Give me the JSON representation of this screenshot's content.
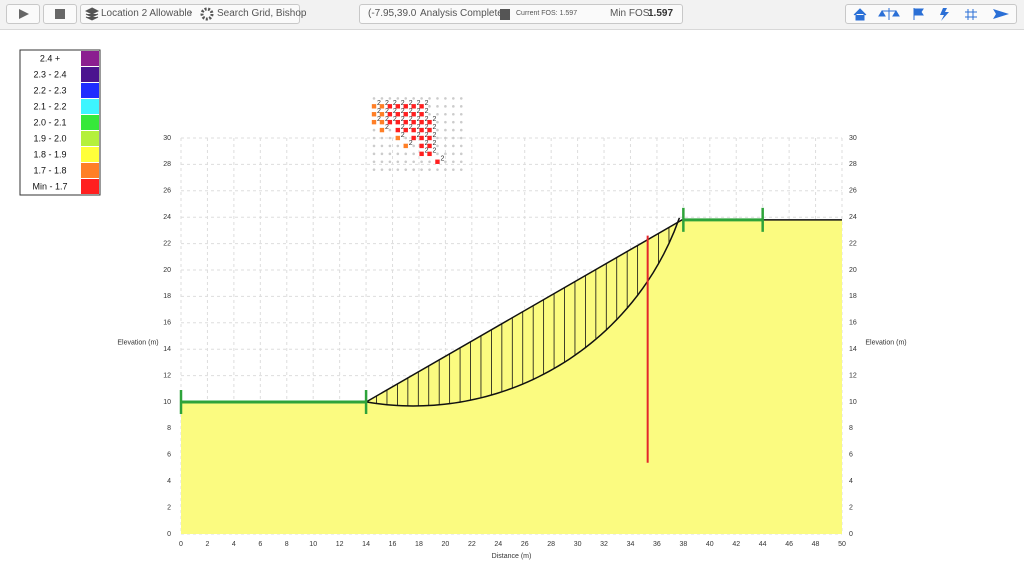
{
  "toolbar": {
    "location": "Location 2 Allowable",
    "method": "Search Grid, Bishop",
    "coords": "(-7.95,39.0",
    "status": "Analysis Complete",
    "current_fos": "Current FOS: 1.597",
    "min_fos_label": "Min FOS:",
    "min_fos": "1.597"
  },
  "chart_data": {
    "type": "slope",
    "xlabel": "Distance (m)",
    "ylabel": "Elevation (m)",
    "y2label": "Elevation (m)",
    "xlim": [
      0,
      50
    ],
    "ylim": [
      0,
      30
    ],
    "xticks": [
      0,
      2,
      4,
      6,
      8,
      10,
      12,
      14,
      16,
      18,
      20,
      22,
      24,
      26,
      28,
      30,
      32,
      34,
      36,
      38,
      40,
      42,
      44,
      46,
      48,
      50
    ],
    "yticks": [
      0,
      2,
      4,
      6,
      8,
      10,
      12,
      14,
      16,
      18,
      20,
      22,
      24,
      26,
      28,
      30
    ],
    "grid": true,
    "legend": [
      {
        "label": "2.4 +",
        "color": "#8b1e90"
      },
      {
        "label": "2.3 - 2.4",
        "color": "#4b138f"
      },
      {
        "label": "2.2 - 2.3",
        "color": "#1f2cff"
      },
      {
        "label": "2.1 - 2.2",
        "color": "#3df5ff"
      },
      {
        "label": "2.0 - 2.1",
        "color": "#36e83a"
      },
      {
        "label": "1.9 - 2.0",
        "color": "#b4f03c"
      },
      {
        "label": "1.8 - 1.9",
        "color": "#ffff3a"
      },
      {
        "label": "1.7 - 1.8",
        "color": "#ff7f27"
      },
      {
        "label": "Min - 1.7",
        "color": "#ff1f1f"
      }
    ],
    "profile": {
      "x": [
        0,
        14,
        37.9,
        50
      ],
      "y": [
        10,
        10,
        23.8,
        23.8
      ],
      "fill": "#fbfb80"
    },
    "markers": {
      "x": [
        0,
        14,
        38,
        44
      ],
      "y": [
        10,
        10,
        23.8,
        23.8
      ],
      "color": "#2ea33a"
    },
    "slip_circle": {
      "cx": 17.6,
      "cy": 31,
      "r": 21.3,
      "entry": 14,
      "exit": 37.7,
      "slices": 30
    },
    "marker_line": {
      "x": 35.3,
      "y": [
        5.4,
        22.6
      ],
      "color": "#e3262b"
    },
    "grid_x": [
      14.6,
      15.2,
      15.8,
      16.4,
      17.0,
      17.6,
      18.2,
      18.8,
      19.4,
      20.0,
      20.6,
      21.2
    ],
    "grid_y": [
      33.0,
      32.4,
      31.8,
      31.2,
      30.6,
      30.0,
      29.4,
      28.8,
      28.2,
      27.6
    ],
    "results": [
      {
        "x": 14.6,
        "y": 32.4,
        "fos": 1.75,
        "label": "2"
      },
      {
        "x": 15.2,
        "y": 32.4,
        "fos": 1.75,
        "label": "2"
      },
      {
        "x": 15.8,
        "y": 32.4,
        "fos": 1.68,
        "label": "2"
      },
      {
        "x": 16.4,
        "y": 32.4,
        "fos": 1.66,
        "label": "2"
      },
      {
        "x": 17.0,
        "y": 32.4,
        "fos": 1.65,
        "label": "2"
      },
      {
        "x": 17.6,
        "y": 32.4,
        "fos": 1.65,
        "label": "2"
      },
      {
        "x": 18.2,
        "y": 32.4,
        "fos": 1.66,
        "label": "2"
      },
      {
        "x": 14.6,
        "y": 31.8,
        "fos": 1.76,
        "label": "2"
      },
      {
        "x": 15.2,
        "y": 31.8,
        "fos": 1.72,
        "label": "2"
      },
      {
        "x": 15.8,
        "y": 31.8,
        "fos": 1.67,
        "label": "2"
      },
      {
        "x": 16.4,
        "y": 31.8,
        "fos": 1.64,
        "label": "2"
      },
      {
        "x": 17.0,
        "y": 31.8,
        "fos": 1.63,
        "label": "2"
      },
      {
        "x": 17.6,
        "y": 31.8,
        "fos": 1.63,
        "label": "2"
      },
      {
        "x": 18.2,
        "y": 31.8,
        "fos": 1.64,
        "label": "2"
      },
      {
        "x": 14.6,
        "y": 31.2,
        "fos": 1.78,
        "label": "2"
      },
      {
        "x": 15.2,
        "y": 31.2,
        "fos": 1.74,
        "label": "2"
      },
      {
        "x": 15.8,
        "y": 31.2,
        "fos": 1.66,
        "label": "2"
      },
      {
        "x": 16.4,
        "y": 31.2,
        "fos": 1.63,
        "label": "2"
      },
      {
        "x": 17.0,
        "y": 31.2,
        "fos": 1.62,
        "label": "2"
      },
      {
        "x": 17.6,
        "y": 31.2,
        "fos": 1.61,
        "label": "2"
      },
      {
        "x": 18.2,
        "y": 31.2,
        "fos": 1.62,
        "label": "2"
      },
      {
        "x": 18.8,
        "y": 31.2,
        "fos": 1.64,
        "label": "2"
      },
      {
        "x": 15.2,
        "y": 30.6,
        "fos": 1.77,
        "label": "2"
      },
      {
        "x": 16.4,
        "y": 30.6,
        "fos": 1.68,
        "label": "2"
      },
      {
        "x": 17.0,
        "y": 30.6,
        "fos": 1.62,
        "label": "2"
      },
      {
        "x": 17.6,
        "y": 30.6,
        "fos": 1.6,
        "label": "2"
      },
      {
        "x": 18.2,
        "y": 30.6,
        "fos": 1.61,
        "label": "2"
      },
      {
        "x": 18.8,
        "y": 30.6,
        "fos": 1.63,
        "label": "2"
      },
      {
        "x": 16.4,
        "y": 30.0,
        "fos": 1.72,
        "label": "2"
      },
      {
        "x": 17.6,
        "y": 30.0,
        "fos": 1.62,
        "label": "2"
      },
      {
        "x": 18.2,
        "y": 30.0,
        "fos": 1.63,
        "label": "2"
      },
      {
        "x": 18.8,
        "y": 30.0,
        "fos": 1.64,
        "label": "2"
      },
      {
        "x": 17.0,
        "y": 29.4,
        "fos": 1.75,
        "label": "2"
      },
      {
        "x": 18.2,
        "y": 29.4,
        "fos": 1.65,
        "label": "2"
      },
      {
        "x": 18.8,
        "y": 29.4,
        "fos": 1.66,
        "label": "2"
      },
      {
        "x": 18.2,
        "y": 28.8,
        "fos": 1.68,
        "label": "2"
      },
      {
        "x": 18.8,
        "y": 28.8,
        "fos": 1.69,
        "label": "2"
      },
      {
        "x": 19.4,
        "y": 28.2,
        "fos": 1.69,
        "label": "2"
      }
    ]
  }
}
